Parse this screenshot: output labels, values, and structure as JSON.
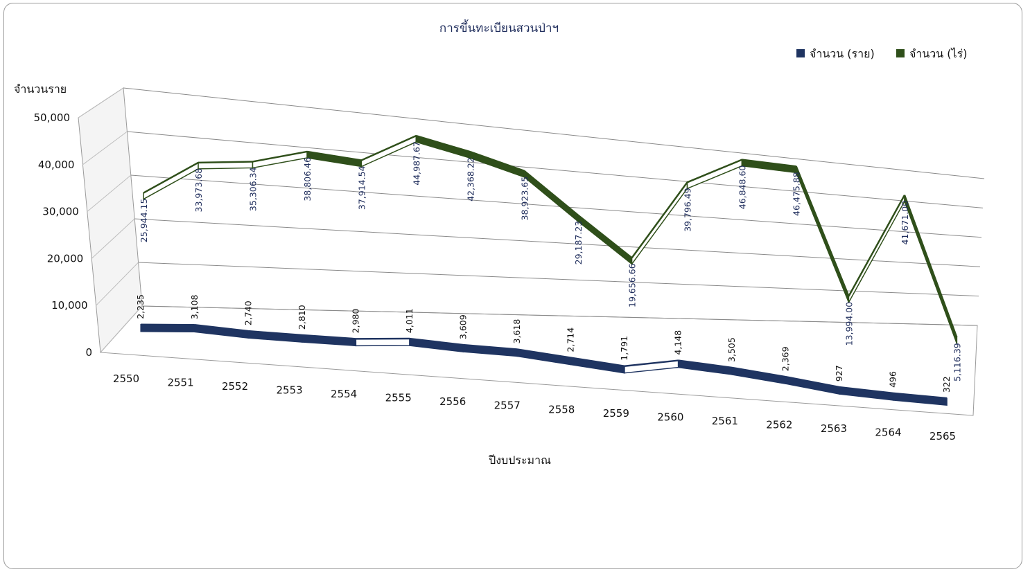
{
  "chart_data": {
    "type": "line",
    "title": "การขึ้นทะเบียนสวนป่าฯ",
    "ylabel": "จำนวนราย",
    "xlabel": "ปีงบประมาณ",
    "ylim": [
      0,
      50000
    ],
    "yticks": [
      "0",
      "10,000",
      "20,000",
      "30,000",
      "40,000",
      "50,000"
    ],
    "categories": [
      "2550",
      "2551",
      "2552",
      "2553",
      "2554",
      "2555",
      "2556",
      "2557",
      "2558",
      "2559",
      "2560",
      "2561",
      "2562",
      "2563",
      "2564",
      "2565"
    ],
    "series": [
      {
        "name": "จำนวน (ราย)",
        "color": "#1f3461",
        "values": [
          2235,
          3108,
          2740,
          2810,
          2980,
          4011,
          3609,
          3618,
          2714,
          1791,
          4148,
          3505,
          2369,
          927,
          496,
          322
        ],
        "labels": [
          "2,235",
          "3,108",
          "2,740",
          "2,810",
          "2,980",
          "4,011",
          "3,609",
          "3,618",
          "2,714",
          "1,791",
          "4,148",
          "3,505",
          "2,369",
          "927",
          "496",
          "322"
        ]
      },
      {
        "name": "จำนวน (ไร่)",
        "color": "#2f4f1a",
        "values": [
          25944.15,
          33973.68,
          35306.34,
          38806.46,
          37914.54,
          44987.67,
          42368.22,
          38923.65,
          29187.23,
          19656.66,
          39796.49,
          46848.6,
          46475.88,
          13994.0,
          41671.0,
          5116.39
        ],
        "labels": [
          "25,944.15",
          "33,973.68",
          "35,306.34",
          "38,806.46",
          "37,914.54",
          "44,987.67",
          "42,368.22",
          "38,923.65",
          "29,187.23",
          "19,656.66",
          "39,796.49",
          "46,848.60",
          "46,475.88",
          "13,994.00",
          "41,671.00",
          "5,116.39"
        ]
      }
    ],
    "grid": true,
    "legend": "top-right",
    "style": "3d-line"
  }
}
